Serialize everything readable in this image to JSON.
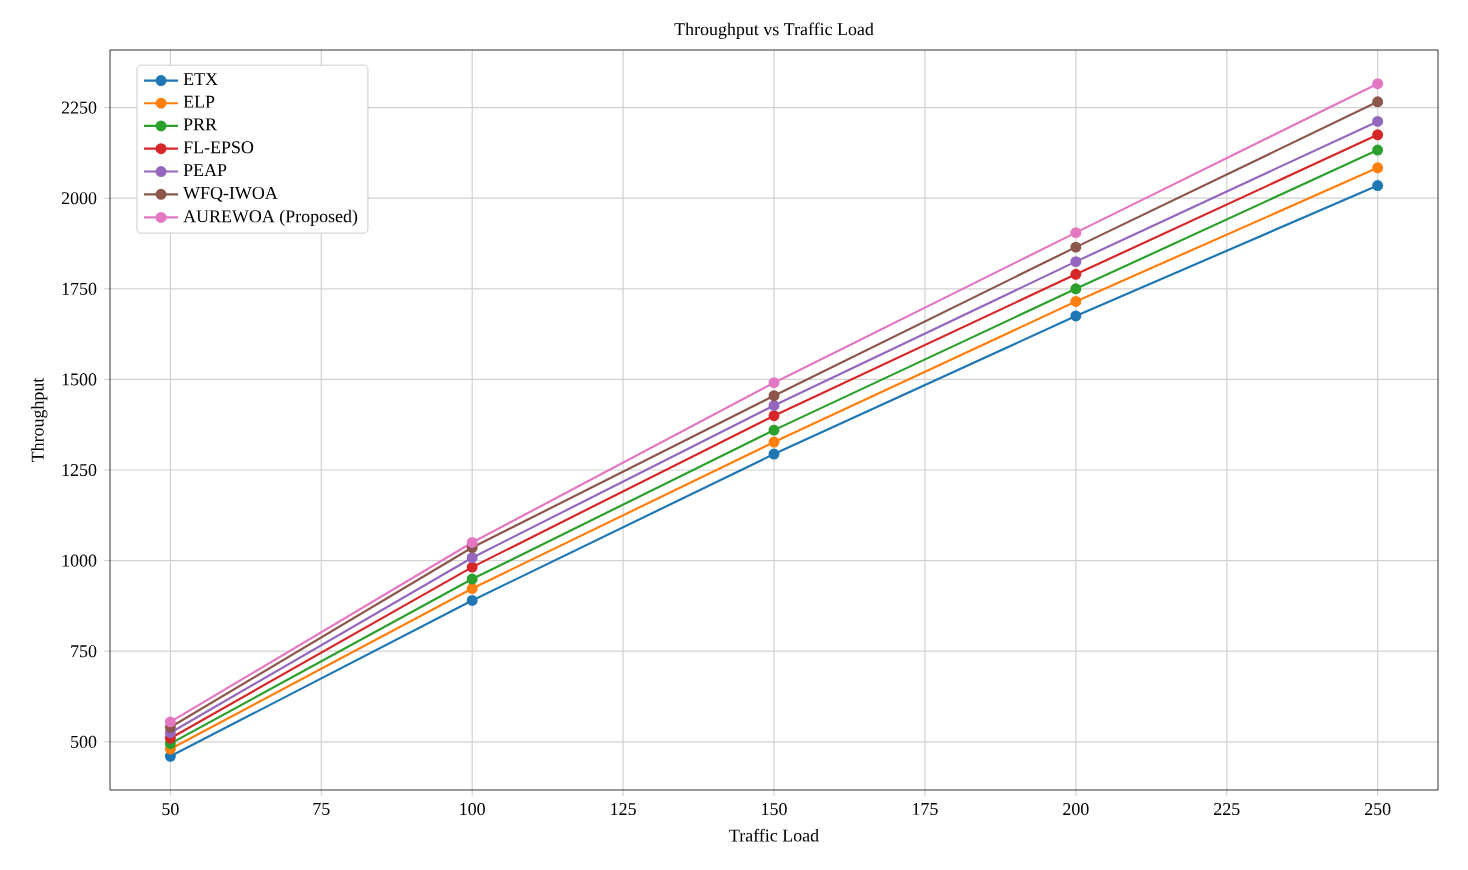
{
  "chart_data": {
    "type": "line",
    "title": "Throughput vs Traffic Load",
    "xlabel": "Traffic Load",
    "ylabel": "Throughput",
    "x": [
      50,
      100,
      150,
      200,
      250
    ],
    "series": [
      {
        "name": "ETX",
        "color": "#1f77b4",
        "values": [
          460,
          890,
          1294,
          1675,
          2035
        ]
      },
      {
        "name": "ELP",
        "color": "#ff7f0e",
        "values": [
          480,
          923,
          1327,
          1715,
          2084
        ]
      },
      {
        "name": "PRR",
        "color": "#2ca02c",
        "values": [
          495,
          949,
          1360,
          1750,
          2133
        ]
      },
      {
        "name": "FL-EPSO",
        "color": "#d62728",
        "values": [
          510,
          982,
          1400,
          1790,
          2175
        ]
      },
      {
        "name": "PEAP",
        "color": "#9467bd",
        "values": [
          525,
          1008,
          1428,
          1825,
          2212
        ]
      },
      {
        "name": "WFQ-IWOA",
        "color": "#8c564b",
        "values": [
          540,
          1036,
          1455,
          1865,
          2266
        ]
      },
      {
        "name": "AUREWOA (Proposed)",
        "color": "#e377c2",
        "values": [
          555,
          1050,
          1491,
          1905,
          2316
        ]
      }
    ],
    "xlim": [
      40,
      260
    ],
    "ylim": [
      367,
      2409
    ],
    "xticks": [
      50,
      75,
      100,
      125,
      150,
      175,
      200,
      225,
      250
    ],
    "yticks": [
      500,
      750,
      1000,
      1250,
      1500,
      1750,
      2000,
      2250
    ],
    "grid": true,
    "legend": "top left",
    "marker": "circle",
    "line_style": "solid"
  }
}
